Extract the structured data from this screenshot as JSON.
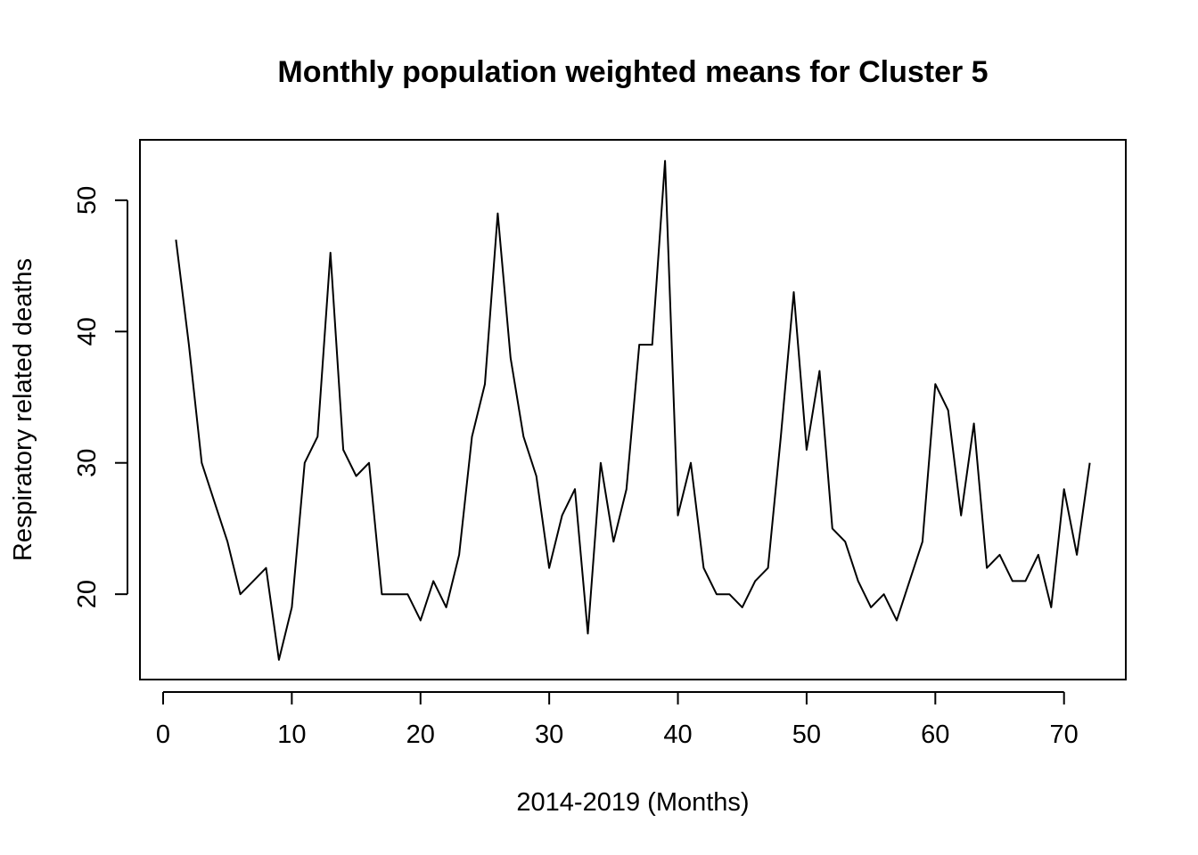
{
  "chart_data": {
    "type": "line",
    "title": "Monthly population weighted means for Cluster 5",
    "xlabel": "2014-2019 (Months)",
    "ylabel": "Respiratory related deaths",
    "xlim": [
      -1.8,
      74.8
    ],
    "ylim": [
      13.5,
      54.6
    ],
    "xticks": [
      0,
      10,
      20,
      30,
      40,
      50,
      60,
      70
    ],
    "yticks": [
      20,
      30,
      40,
      50
    ],
    "grid": false,
    "legend": "none",
    "x": [
      1,
      2,
      3,
      4,
      5,
      6,
      7,
      8,
      9,
      10,
      11,
      12,
      13,
      14,
      15,
      16,
      17,
      18,
      19,
      20,
      21,
      22,
      23,
      24,
      25,
      26,
      27,
      28,
      29,
      30,
      31,
      32,
      33,
      34,
      35,
      36,
      37,
      38,
      39,
      40,
      41,
      42,
      43,
      44,
      45,
      46,
      47,
      48,
      49,
      50,
      51,
      52,
      53,
      54,
      55,
      56,
      57,
      58,
      59,
      60,
      61,
      62,
      63,
      64,
      65,
      66,
      67,
      68,
      69,
      70,
      71,
      72
    ],
    "series": [
      {
        "values": [
          47,
          39,
          30,
          27,
          24,
          20,
          21,
          22,
          15,
          19,
          30,
          32,
          46,
          31,
          29,
          30,
          20,
          20,
          20,
          18,
          21,
          19,
          23,
          32,
          36,
          49,
          38,
          32,
          29,
          22,
          26,
          28,
          17,
          30,
          24,
          28,
          39,
          39,
          53,
          26,
          30,
          22,
          20,
          20,
          19,
          21,
          22,
          32,
          43,
          31,
          37,
          25,
          24,
          21,
          19,
          20,
          18,
          21,
          24,
          36,
          34,
          26,
          33,
          22,
          23,
          21,
          21,
          23,
          19,
          28,
          23,
          30
        ],
        "color": "#000000"
      }
    ]
  }
}
